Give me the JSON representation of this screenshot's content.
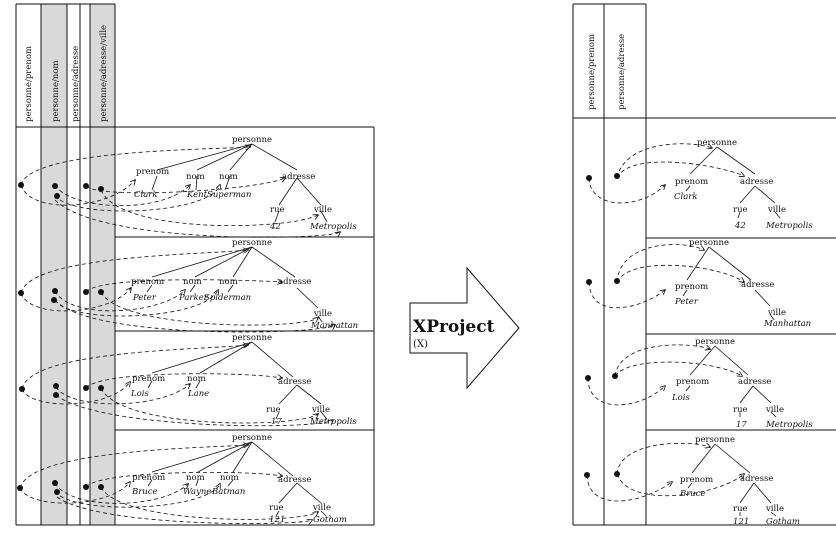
{
  "left": {
    "columns": [
      "personne/prenom",
      "personne/nom",
      "personne/adresse",
      "personne/adresse/ville"
    ],
    "records": [
      {
        "root": "personne",
        "children": [
          "prenom",
          "nom",
          "nom",
          "adresse"
        ],
        "leaves": [
          "Clark",
          "Kent",
          "Superman"
        ],
        "addr": [
          "rue",
          "ville"
        ],
        "addrLeaves": [
          "42",
          "Metropolis"
        ]
      },
      {
        "root": "personne",
        "children": [
          "prenom",
          "nom",
          "nom",
          "adresse"
        ],
        "leaves": [
          "Peter",
          "Parker",
          "Spiderman"
        ],
        "addr": [
          "ville"
        ],
        "addrLeaves": [
          "Manhattan"
        ]
      },
      {
        "root": "personne",
        "children": [
          "prenom",
          "nom",
          "adresse"
        ],
        "leaves": [
          "Lois",
          "Lane"
        ],
        "addr": [
          "rue",
          "ville"
        ],
        "addrLeaves": [
          "17",
          "Metropolis"
        ]
      },
      {
        "root": "personne",
        "children": [
          "prenom",
          "nom",
          "nom",
          "adresse"
        ],
        "leaves": [
          "Bruce",
          "Wayne",
          "Batman"
        ],
        "addr": [
          "rue",
          "ville"
        ],
        "addrLeaves": [
          "121",
          "Gotham"
        ]
      }
    ]
  },
  "arrow": {
    "title": "XProject",
    "subtitle": "(X)"
  },
  "right": {
    "columns": [
      "personne/prenom",
      "personne/adresse"
    ],
    "records": [
      {
        "root": "personne",
        "children": [
          "prenom",
          "adresse"
        ],
        "leaves": [
          "Clark"
        ],
        "addr": [
          "rue",
          "ville"
        ],
        "addrLeaves": [
          "42",
          "Metropolis"
        ]
      },
      {
        "root": "personne",
        "children": [
          "prenom",
          "adresse"
        ],
        "leaves": [
          "Peter"
        ],
        "addr": [
          "ville"
        ],
        "addrLeaves": [
          "Manhattan"
        ]
      },
      {
        "root": "personne",
        "children": [
          "prenom",
          "adresse"
        ],
        "leaves": [
          "Lois"
        ],
        "addr": [
          "rue",
          "ville"
        ],
        "addrLeaves": [
          "17",
          "Metropolis"
        ]
      },
      {
        "root": "personne",
        "children": [
          "prenom",
          "adresse"
        ],
        "leaves": [
          "Bruce"
        ],
        "addr": [
          "rue",
          "ville"
        ],
        "addrLeaves": [
          "121",
          "Gotham"
        ]
      }
    ]
  }
}
